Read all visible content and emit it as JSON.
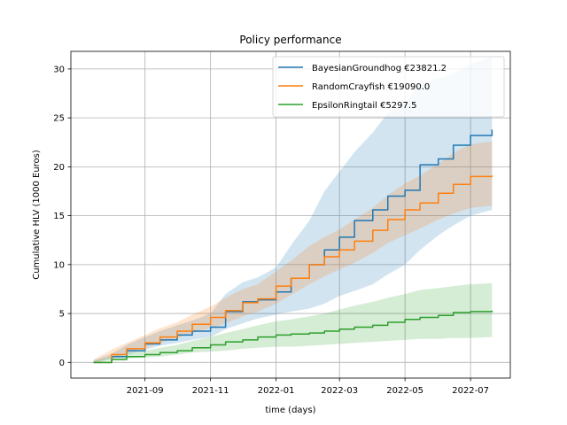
{
  "chart_data": {
    "type": "line",
    "title": "Policy performance",
    "xlabel": "time (days)",
    "ylabel": "Cumulative HLV (1000 Euros)",
    "x_tick_labels": [
      "2021-09",
      "2021-11",
      "2022-01",
      "2022-03",
      "2022-05",
      "2022-07"
    ],
    "y_tick_labels": [
      "0",
      "5",
      "10",
      "15",
      "20",
      "25",
      "30"
    ],
    "x_ticks": [
      "2021-09-01",
      "2021-11-01",
      "2022-01-01",
      "2022-03-01",
      "2022-05-01",
      "2022-07-01"
    ],
    "y_ticks": [
      0,
      5,
      10,
      15,
      20,
      25,
      30
    ],
    "xlim": [
      "2021-06-24",
      "2022-08-07"
    ],
    "ylim": [
      -1.6,
      31.8
    ],
    "grid": true,
    "legend_position": "top-right",
    "series": [
      {
        "name": "BayesianGroundhog €23821.2",
        "color": "#1f77b4",
        "x": [
          "2021-07-15",
          "2021-08-01",
          "2021-08-15",
          "2021-09-01",
          "2021-09-15",
          "2021-10-01",
          "2021-10-15",
          "2021-11-01",
          "2021-11-15",
          "2021-12-01",
          "2021-12-15",
          "2022-01-01",
          "2022-01-15",
          "2022-02-01",
          "2022-02-15",
          "2022-03-01",
          "2022-03-15",
          "2022-04-01",
          "2022-04-15",
          "2022-05-01",
          "2022-05-15",
          "2022-06-01",
          "2022-06-15",
          "2022-07-01",
          "2022-07-21"
        ],
        "y": [
          0,
          0.6,
          1.2,
          1.9,
          2.3,
          2.8,
          3.2,
          3.6,
          5.2,
          6.2,
          6.4,
          7.2,
          8.6,
          10.0,
          11.5,
          12.8,
          14.5,
          15.6,
          17.0,
          17.6,
          20.2,
          20.8,
          22.2,
          23.2,
          23.8
        ],
        "lower": [
          0,
          0.4,
          0.8,
          1.3,
          1.7,
          2.0,
          2.3,
          2.6,
          3.4,
          4.0,
          4.5,
          4.9,
          5.2,
          5.5,
          6.0,
          6.8,
          7.3,
          8.0,
          9.0,
          10.0,
          11.5,
          13.0,
          14.0,
          15.0,
          15.6
        ],
        "upper": [
          0.2,
          0.9,
          1.8,
          2.6,
          3.2,
          3.8,
          4.3,
          5.0,
          7.0,
          8.2,
          8.7,
          9.7,
          12.0,
          14.5,
          17.5,
          19.5,
          21.5,
          23.5,
          25.5,
          26.5,
          28.5,
          29.0,
          29.5,
          30.5,
          31.3
        ]
      },
      {
        "name": "RandomCrayfish €19090.0",
        "color": "#ff7f0e",
        "x": [
          "2021-07-15",
          "2021-08-01",
          "2021-08-15",
          "2021-09-01",
          "2021-09-15",
          "2021-10-01",
          "2021-10-15",
          "2021-11-01",
          "2021-11-15",
          "2021-12-01",
          "2021-12-15",
          "2022-01-01",
          "2022-01-15",
          "2022-02-01",
          "2022-02-15",
          "2022-03-01",
          "2022-03-15",
          "2022-04-01",
          "2022-04-15",
          "2022-05-01",
          "2022-05-15",
          "2022-06-01",
          "2022-06-15",
          "2022-07-01",
          "2022-07-21"
        ],
        "y": [
          0,
          0.8,
          1.4,
          2.0,
          2.6,
          3.2,
          3.9,
          4.6,
          5.3,
          6.1,
          6.5,
          7.8,
          8.6,
          10.0,
          10.8,
          11.5,
          12.4,
          13.5,
          14.6,
          15.6,
          16.3,
          17.3,
          18.2,
          19.0,
          19.1
        ],
        "lower": [
          0,
          0.5,
          1.0,
          1.5,
          2.0,
          2.5,
          3.0,
          3.5,
          4.0,
          4.7,
          5.2,
          6.0,
          6.9,
          8.0,
          8.8,
          9.5,
          10.2,
          11.2,
          12.2,
          13.0,
          13.7,
          14.6,
          15.2,
          15.8,
          16.0
        ],
        "upper": [
          0.3,
          1.3,
          2.0,
          2.8,
          3.5,
          4.1,
          4.9,
          5.7,
          6.6,
          7.5,
          8.0,
          9.3,
          10.4,
          11.9,
          12.8,
          13.6,
          14.6,
          15.8,
          17.1,
          18.3,
          19.1,
          20.3,
          21.4,
          22.3,
          22.6
        ]
      },
      {
        "name": "EpsilonRingtail €5297.5",
        "color": "#2ca02c",
        "x": [
          "2021-07-15",
          "2021-08-01",
          "2021-08-15",
          "2021-09-01",
          "2021-09-15",
          "2021-10-01",
          "2021-10-15",
          "2021-11-01",
          "2021-11-15",
          "2021-12-01",
          "2021-12-15",
          "2022-01-01",
          "2022-01-15",
          "2022-02-01",
          "2022-02-15",
          "2022-03-01",
          "2022-03-15",
          "2022-04-01",
          "2022-04-15",
          "2022-05-01",
          "2022-05-15",
          "2022-06-01",
          "2022-06-15",
          "2022-07-01",
          "2022-07-21"
        ],
        "y": [
          0,
          0.3,
          0.6,
          0.8,
          1.0,
          1.2,
          1.5,
          1.8,
          2.1,
          2.3,
          2.6,
          2.8,
          2.9,
          3.0,
          3.2,
          3.4,
          3.6,
          3.8,
          4.1,
          4.4,
          4.6,
          4.8,
          5.1,
          5.2,
          5.3
        ],
        "lower": [
          0,
          0.2,
          0.4,
          0.5,
          0.6,
          0.8,
          1.0,
          1.1,
          1.2,
          1.4,
          1.5,
          1.6,
          1.6,
          1.7,
          1.8,
          1.9,
          2.0,
          2.1,
          2.2,
          2.3,
          2.4,
          2.4,
          2.5,
          2.5,
          2.6
        ],
        "upper": [
          0.1,
          0.6,
          1.0,
          1.2,
          1.5,
          1.8,
          2.2,
          2.6,
          3.0,
          3.4,
          3.8,
          4.2,
          4.4,
          4.7,
          5.0,
          5.4,
          5.8,
          6.2,
          6.6,
          7.0,
          7.4,
          7.6,
          7.8,
          8.0,
          8.1
        ]
      }
    ]
  }
}
